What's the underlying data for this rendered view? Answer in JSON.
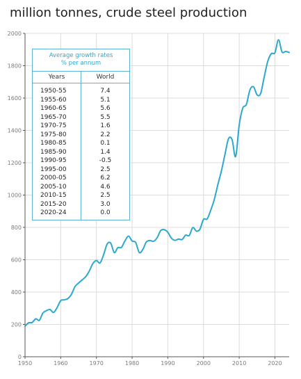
{
  "title": "million tonnes, crude steel production",
  "table": {
    "caption_line1": "Average growth rates",
    "caption_line2": "% per annum",
    "header_years": "Years",
    "header_world": "World",
    "rows": [
      {
        "years": "1950-55",
        "world": "7.4"
      },
      {
        "years": "1955-60",
        "world": "5.1"
      },
      {
        "years": "1960-65",
        "world": "5.6"
      },
      {
        "years": "1965-70",
        "world": "5.5"
      },
      {
        "years": "1970-75",
        "world": "1.6"
      },
      {
        "years": "1975-80",
        "world": "2.2"
      },
      {
        "years": "1980-85",
        "world": "0.1"
      },
      {
        "years": "1985-90",
        "world": "1.4"
      },
      {
        "years": "1990-95",
        "world": "-0.5"
      },
      {
        "years": "1995-00",
        "world": "2.5"
      },
      {
        "years": "2000-05",
        "world": "6.2"
      },
      {
        "years": "2005-10",
        "world": "4.6"
      },
      {
        "years": "2010-15",
        "world": "2.5"
      },
      {
        "years": "2015-20",
        "world": "3.0"
      },
      {
        "years": "2020-24",
        "world": "0.0"
      }
    ]
  },
  "chart_data": {
    "type": "line",
    "title": "million tonnes, crude steel production",
    "xlabel": "",
    "ylabel": "",
    "xlim": [
      1950,
      2024
    ],
    "ylim": [
      0,
      2000
    ],
    "xticks": [
      1950,
      1960,
      1970,
      1980,
      1990,
      2000,
      2010,
      2020
    ],
    "yticks": [
      0,
      200,
      400,
      600,
      800,
      1000,
      1200,
      1400,
      1600,
      1800,
      2000
    ],
    "grid": true,
    "series_color": "#2aa8cf",
    "x": [
      1950,
      1951,
      1952,
      1953,
      1954,
      1955,
      1956,
      1957,
      1958,
      1959,
      1960,
      1961,
      1962,
      1963,
      1964,
      1965,
      1966,
      1967,
      1968,
      1969,
      1970,
      1971,
      1972,
      1973,
      1974,
      1975,
      1976,
      1977,
      1978,
      1979,
      1980,
      1981,
      1982,
      1983,
      1984,
      1985,
      1986,
      1987,
      1988,
      1989,
      1990,
      1991,
      1992,
      1993,
      1994,
      1995,
      1996,
      1997,
      1998,
      1999,
      2000,
      2001,
      2002,
      2003,
      2004,
      2005,
      2006,
      2007,
      2008,
      2009,
      2010,
      2011,
      2012,
      2013,
      2014,
      2015,
      2016,
      2017,
      2018,
      2019,
      2020,
      2021,
      2022,
      2023,
      2024
    ],
    "y": [
      189,
      210,
      212,
      235,
      225,
      270,
      285,
      292,
      274,
      305,
      347,
      352,
      360,
      386,
      434,
      456,
      475,
      495,
      530,
      576,
      595,
      580,
      630,
      697,
      703,
      644,
      675,
      676,
      717,
      746,
      716,
      707,
      645,
      664,
      710,
      719,
      714,
      736,
      780,
      786,
      770,
      734,
      720,
      728,
      725,
      752,
      750,
      799,
      777,
      789,
      850,
      852,
      905,
      971,
      1063,
      1148,
      1250,
      1348,
      1343,
      1238,
      1433,
      1538,
      1560,
      1650,
      1670,
      1620,
      1628,
      1730,
      1827,
      1875,
      1880,
      1960,
      1885,
      1888,
      1882
    ]
  }
}
